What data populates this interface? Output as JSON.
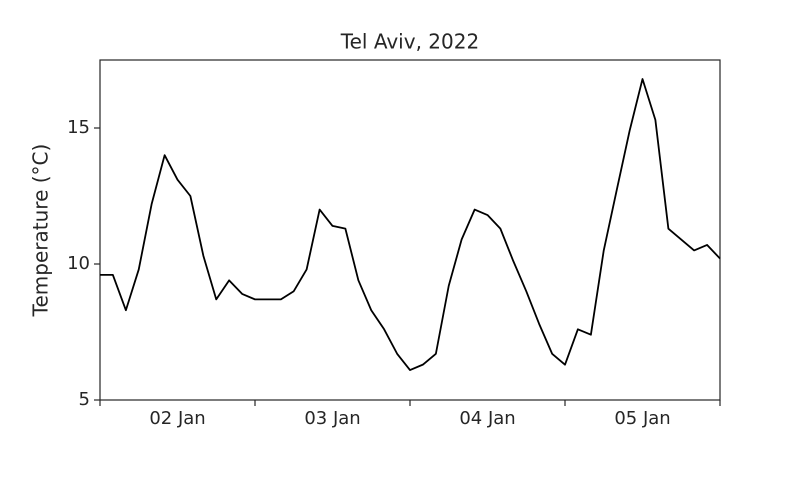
{
  "chart_data": {
    "type": "line",
    "title": "Tel Aviv, 2022",
    "y_label": "Temperature (°C)",
    "x": [
      2,
      2.083,
      2.167,
      2.25,
      2.333,
      2.417,
      2.5,
      2.583,
      2.667,
      2.75,
      2.833,
      2.917,
      3,
      3.083,
      3.167,
      3.25,
      3.333,
      3.417,
      3.5,
      3.583,
      3.667,
      3.75,
      3.833,
      3.917,
      4,
      4.083,
      4.167,
      4.25,
      4.333,
      4.417,
      4.5,
      4.583,
      4.667,
      4.75,
      4.833,
      4.917,
      5,
      5.083,
      5.167,
      5.25,
      5.333,
      5.417,
      5.5,
      5.583,
      5.667,
      5.75,
      5.833,
      5.917,
      6
    ],
    "values": [
      9.6,
      9.6,
      8.3,
      9.8,
      12.2,
      14.0,
      13.1,
      12.5,
      10.3,
      8.7,
      9.4,
      8.9,
      8.7,
      8.7,
      8.7,
      9.0,
      9.8,
      12.0,
      11.4,
      11.3,
      9.4,
      8.3,
      7.6,
      6.7,
      6.1,
      6.3,
      6.7,
      9.2,
      10.9,
      12.0,
      11.8,
      11.3,
      10.1,
      9.0,
      7.8,
      6.7,
      6.3,
      7.6,
      7.4,
      10.5,
      12.7,
      14.9,
      16.8,
      15.3,
      11.3,
      10.9,
      10.5,
      10.7,
      10.2
    ],
    "color": "#000000",
    "xlim": [
      2,
      6
    ],
    "x_major_ticks": [
      2,
      3,
      4,
      5,
      6
    ],
    "xticks": [
      {
        "value": 2.5,
        "label": "02 Jan"
      },
      {
        "value": 3.5,
        "label": "03 Jan"
      },
      {
        "value": 4.5,
        "label": "04 Jan"
      },
      {
        "value": 5.5,
        "label": "05 Jan"
      }
    ],
    "ylim": [
      5,
      17.5
    ],
    "yticks": [
      5,
      10,
      15
    ],
    "grid": false
  }
}
